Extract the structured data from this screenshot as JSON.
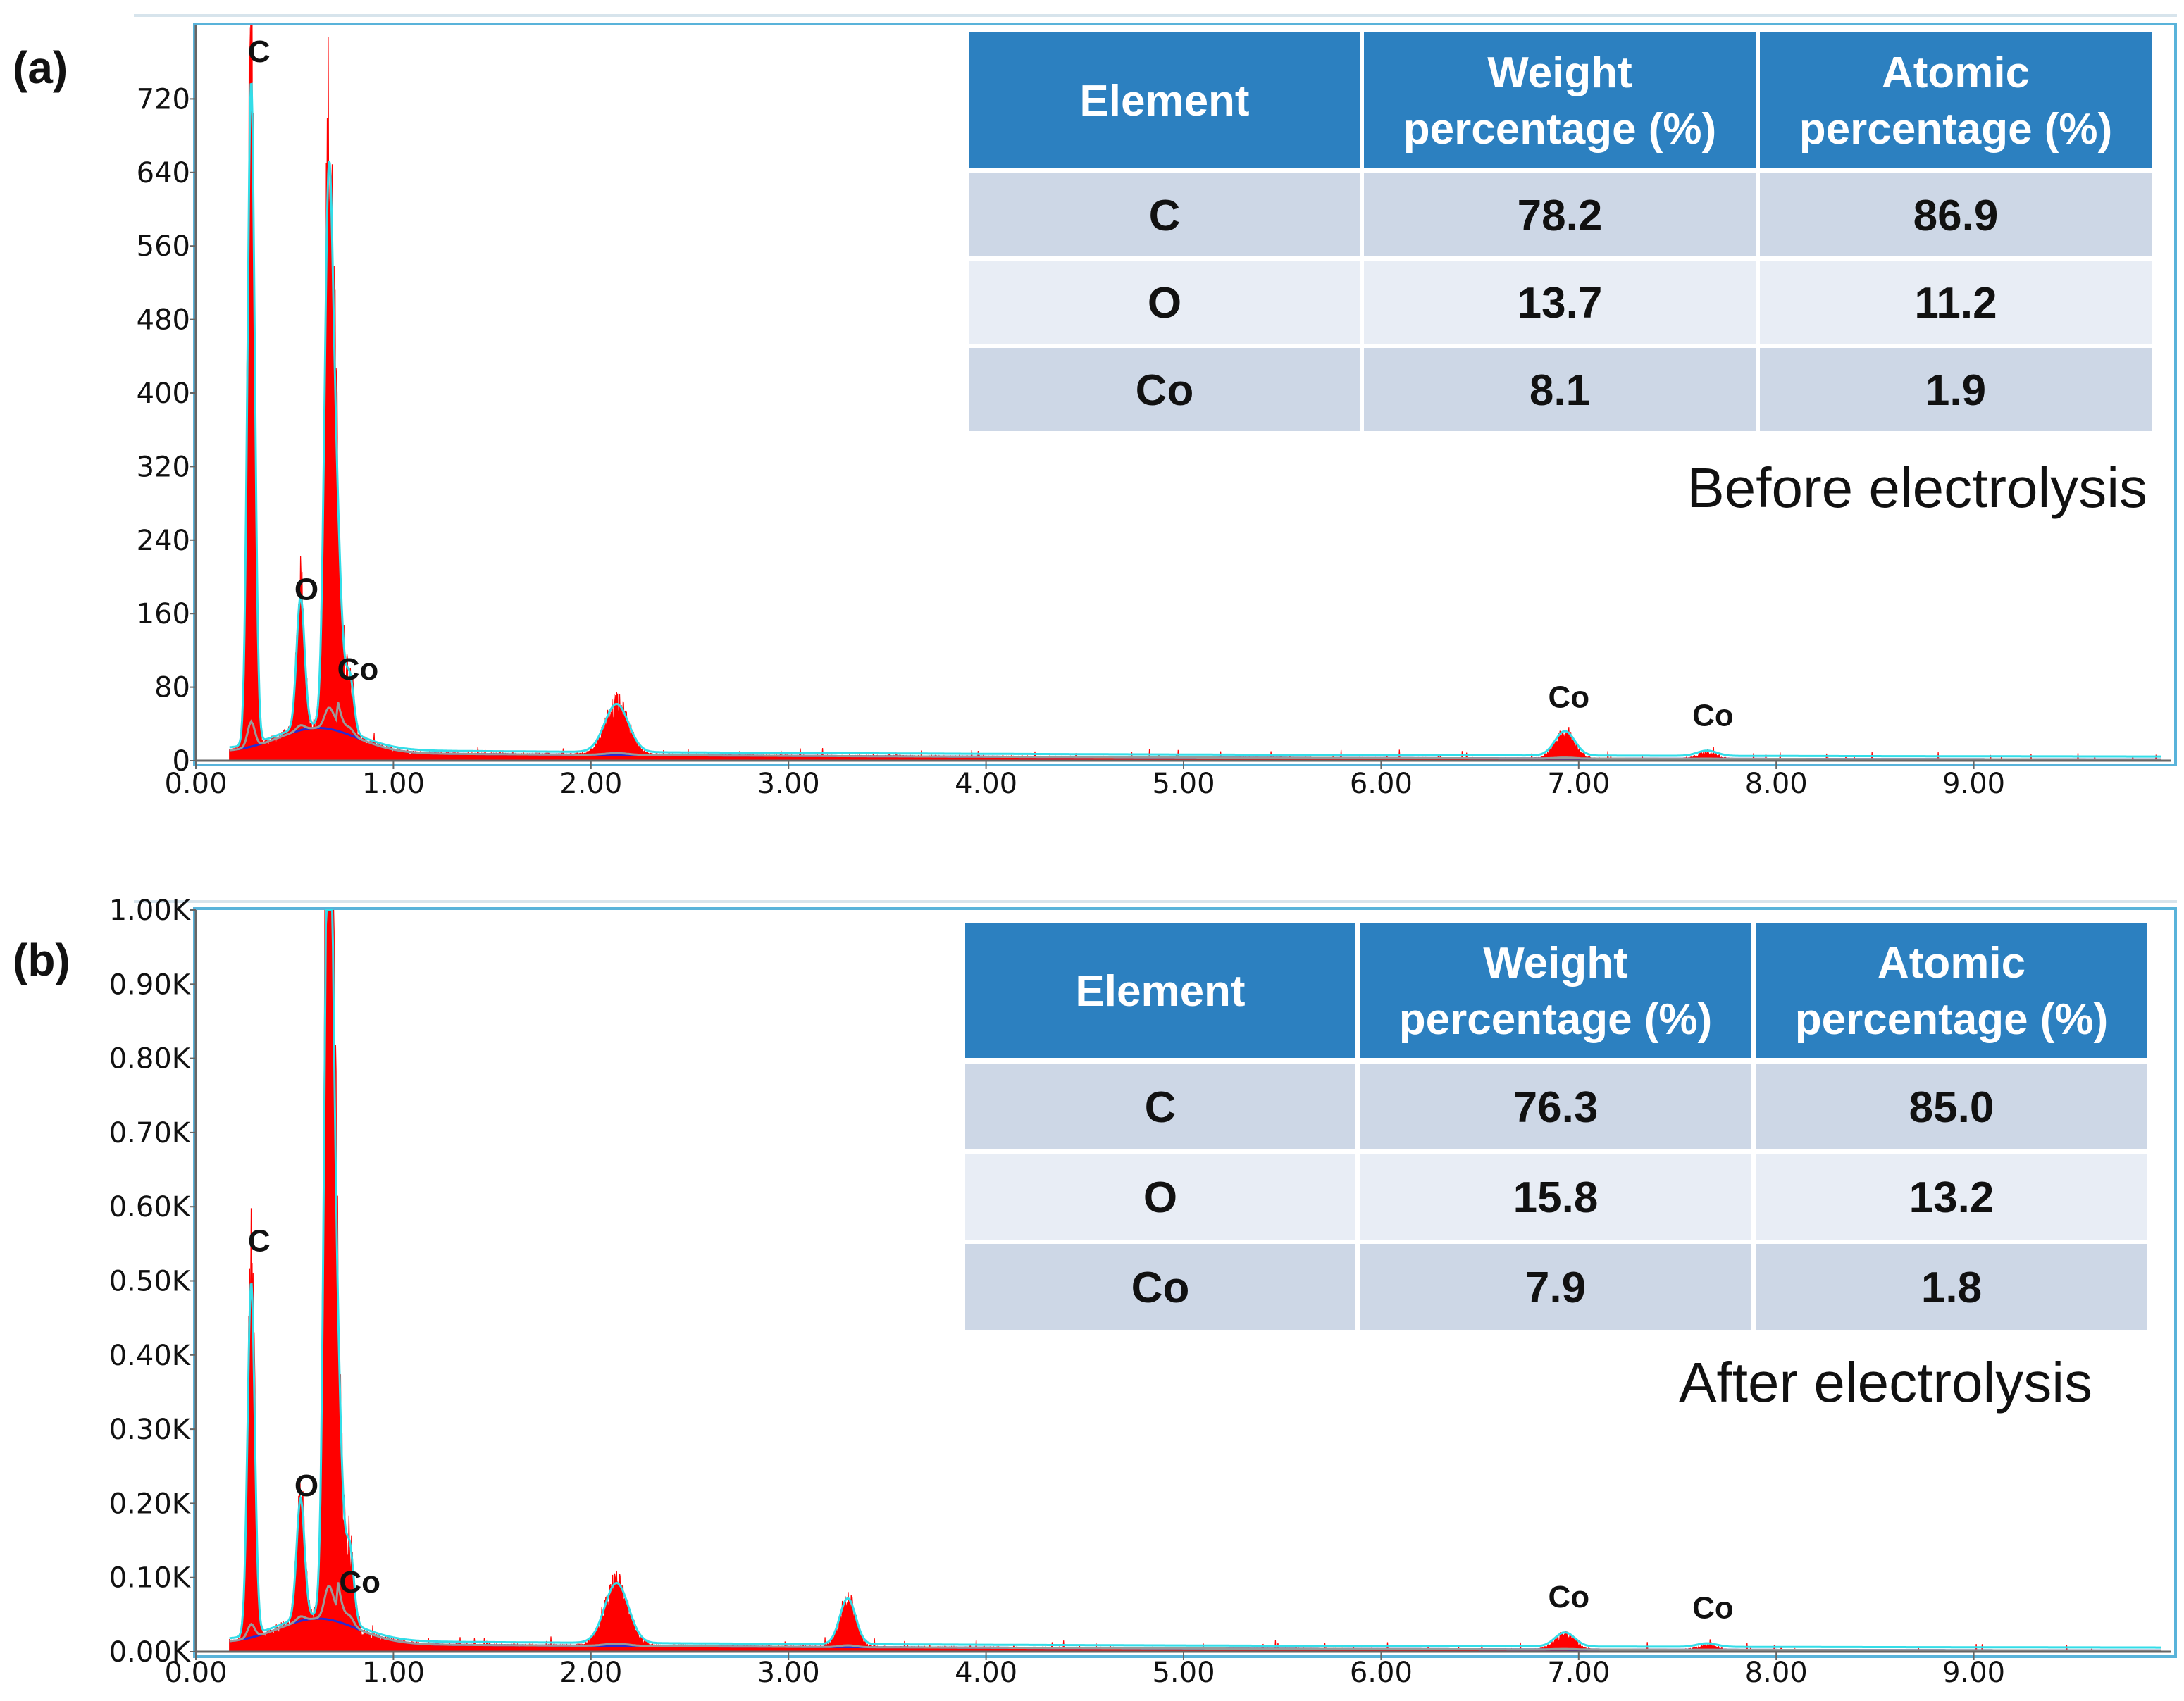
{
  "chart_data": [
    {
      "type": "spectrum",
      "panel": "(a)",
      "title": "Before electrolysis",
      "x_ticks": [
        "0.00",
        "1.00",
        "2.00",
        "3.00",
        "4.00",
        "5.00",
        "6.00",
        "7.00",
        "8.00",
        "9.00"
      ],
      "y_ticks": [
        "0",
        "80",
        "160",
        "240",
        "320",
        "400",
        "480",
        "560",
        "640",
        "720"
      ],
      "xlim": [
        0,
        10
      ],
      "ylim": [
        0,
        800
      ],
      "peaks": [
        {
          "x": 0.28,
          "y": 760,
          "w": 0.018
        },
        {
          "x": 0.53,
          "y": 150,
          "w": 0.02
        },
        {
          "x": 0.67,
          "y": 450,
          "w": 0.02
        },
        {
          "x": 0.7,
          "y": 300,
          "w": 0.03
        },
        {
          "x": 0.78,
          "y": 60,
          "w": 0.02
        },
        {
          "x": 2.13,
          "y": 55,
          "w": 0.06
        },
        {
          "x": 6.93,
          "y": 28,
          "w": 0.05
        },
        {
          "x": 7.65,
          "y": 6,
          "w": 0.05
        }
      ],
      "peak_labels": [
        {
          "text": "C",
          "x": 0.32,
          "y": 760
        },
        {
          "text": "O",
          "x": 0.56,
          "y": 175
        },
        {
          "text": "Co",
          "x": 0.82,
          "y": 88
        },
        {
          "text": "Co",
          "x": 6.95,
          "y": 58
        },
        {
          "text": "Co",
          "x": 7.68,
          "y": 38
        }
      ],
      "table": {
        "headers": [
          [
            "Element"
          ],
          [
            "Weight",
            "percentage (%)"
          ],
          [
            "Atomic",
            "percentage (%)"
          ]
        ],
        "rows": [
          [
            "C",
            "78.2",
            "86.9"
          ],
          [
            "O",
            "13.7",
            "11.2"
          ],
          [
            "Co",
            "8.1",
            "1.9"
          ]
        ]
      }
    },
    {
      "type": "spectrum",
      "panel": "(b)",
      "title": "After electrolysis",
      "x_ticks": [
        "0.00",
        "1.00",
        "2.00",
        "3.00",
        "4.00",
        "5.00",
        "6.00",
        "7.00",
        "8.00",
        "9.00"
      ],
      "y_ticks": [
        "0.00K",
        "0.10K",
        "0.20K",
        "0.30K",
        "0.40K",
        "0.50K",
        "0.60K",
        "0.70K",
        "0.80K",
        "0.90K",
        "1.00K"
      ],
      "xlim": [
        0,
        10
      ],
      "ylim": [
        0,
        1000
      ],
      "peaks": [
        {
          "x": 0.28,
          "y": 500,
          "w": 0.018
        },
        {
          "x": 0.53,
          "y": 170,
          "w": 0.02
        },
        {
          "x": 0.67,
          "y": 950,
          "w": 0.02
        },
        {
          "x": 0.7,
          "y": 500,
          "w": 0.03
        },
        {
          "x": 0.78,
          "y": 100,
          "w": 0.02
        },
        {
          "x": 2.13,
          "y": 85,
          "w": 0.06
        },
        {
          "x": 3.3,
          "y": 65,
          "w": 0.04
        },
        {
          "x": 6.93,
          "y": 20,
          "w": 0.05
        },
        {
          "x": 7.65,
          "y": 5,
          "w": 0.05
        }
      ],
      "peak_labels": [
        {
          "text": "C",
          "x": 0.32,
          "y": 540
        },
        {
          "text": "O",
          "x": 0.56,
          "y": 210
        },
        {
          "text": "Co",
          "x": 0.83,
          "y": 80
        },
        {
          "text": "Co",
          "x": 6.95,
          "y": 60
        },
        {
          "text": "Co",
          "x": 7.68,
          "y": 45
        }
      ],
      "table": {
        "headers": [
          [
            "Element"
          ],
          [
            "Weight",
            "percentage (%)"
          ],
          [
            "Atomic",
            "percentage (%)"
          ]
        ],
        "rows": [
          [
            "C",
            "76.3",
            "85.0"
          ],
          [
            "O",
            "15.8",
            "13.2"
          ],
          [
            "Co",
            "7.9",
            "1.8"
          ]
        ]
      }
    }
  ],
  "colors": {
    "spectrum_fill": "#ff0000",
    "fit_line": "#33dde8",
    "background_line": "#2a2ad0",
    "sum_line": "#9a9a9a",
    "frame": "#59b3da",
    "table_header": "#2c80c0",
    "table_row_dark": "#cdd7e6",
    "table_row_light": "#e8edf5"
  }
}
